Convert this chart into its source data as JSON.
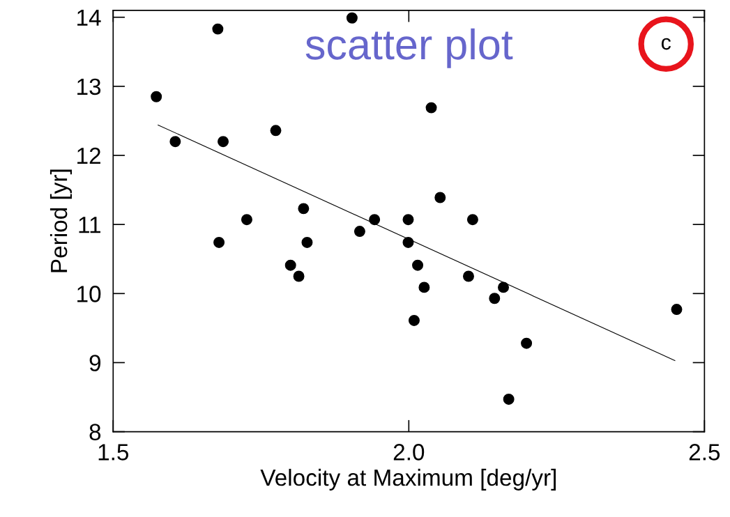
{
  "chart_data": {
    "type": "scatter",
    "xlabel": "Velocity at Maximum [deg/yr]",
    "ylabel": "Period [yr]",
    "xlim": [
      1.5,
      2.5
    ],
    "ylim": [
      8,
      14.1
    ],
    "xticks": [
      {
        "value": 1.5,
        "label": "1.5"
      },
      {
        "value": 2.0,
        "label": "2.0"
      },
      {
        "value": 2.5,
        "label": "2.5"
      }
    ],
    "yticks": [
      8,
      9,
      10,
      11,
      12,
      13,
      14
    ],
    "grid": false,
    "series": [
      {
        "marker": "circle",
        "color": "#000000",
        "x": [
          1.573,
          1.605,
          1.677,
          1.686,
          1.679,
          1.726,
          1.775,
          1.8,
          1.814,
          1.822,
          1.828,
          1.904,
          1.917,
          1.942,
          1.999,
          1.999,
          2.015,
          2.026,
          2.009,
          2.038,
          2.053,
          2.108,
          2.101,
          2.145,
          2.16,
          2.169,
          2.199,
          2.453
        ],
        "values": [
          12.85,
          12.2,
          13.83,
          12.2,
          10.74,
          11.07,
          12.36,
          10.41,
          10.25,
          11.23,
          10.74,
          13.99,
          10.9,
          11.07,
          11.07,
          10.74,
          10.41,
          10.09,
          9.61,
          12.69,
          11.39,
          11.07,
          10.25,
          9.93,
          10.09,
          8.47,
          9.28,
          9.77
        ]
      },
      {
        "type": "line",
        "marker": "none",
        "color": "#000000",
        "x": [
          1.576,
          2.45
        ],
        "values": [
          12.44,
          9.03
        ]
      }
    ],
    "annotations": [
      "scatter plot",
      "c"
    ]
  }
}
